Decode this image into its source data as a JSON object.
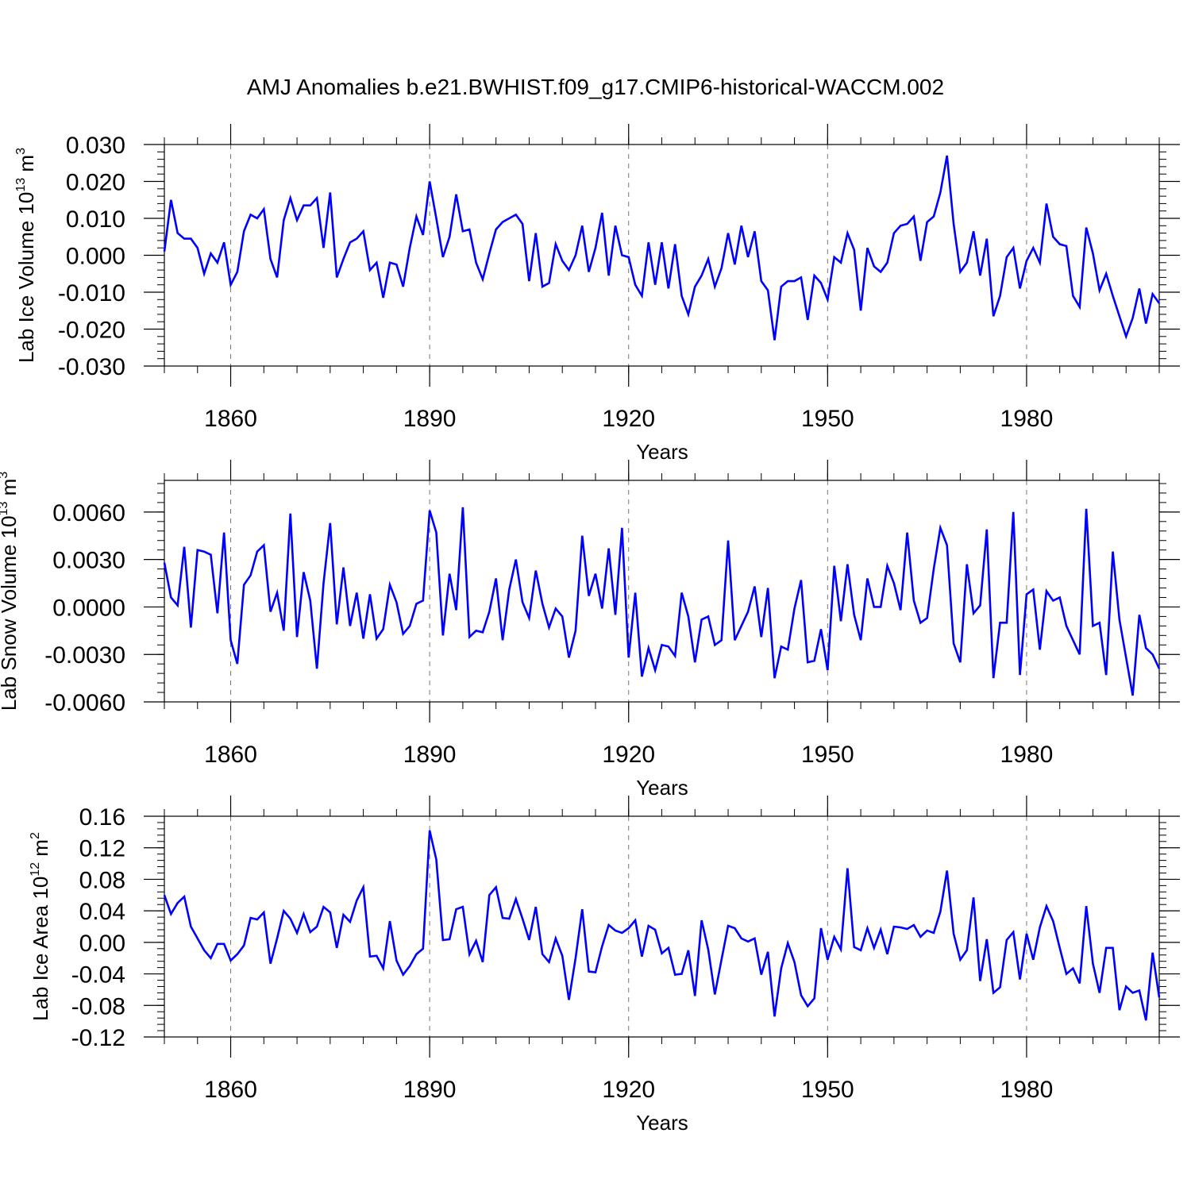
{
  "title": "AMJ Anomalies b.e21.BWHIST.f09_g17.CMIP6-historical-WACCM.002",
  "chart_data": [
    {
      "type": "line",
      "title": "AMJ Anomalies b.e21.BWHIST.f09_g17.CMIP6-historical-WACCM.002",
      "xlabel": "Years",
      "ylabel": "Lab Ice Volume 10",
      "ylabel_sup": "13",
      "ylabel_unit": " m",
      "ylabel_unit_sup": "3",
      "xlim": [
        1850,
        2000
      ],
      "ylim": [
        -0.03,
        0.03
      ],
      "xticks": [
        1860,
        1890,
        1920,
        1950,
        1980
      ],
      "xtick_labels": [
        "1860",
        "1890",
        "1920",
        "1950",
        "1980"
      ],
      "yticks": [
        0.03,
        0.02,
        0.01,
        0.0,
        -0.01,
        -0.02,
        -0.03
      ],
      "ytick_labels": [
        "0.030",
        "0.020",
        "0.010",
        "0.000",
        "-0.010",
        "-0.020",
        "-0.030"
      ],
      "series": [
        {
          "name": "Lab Ice Volume",
          "color": "#0000ff",
          "x_start": 1850,
          "values": [
            0.001,
            0.015,
            0.006,
            0.0045,
            0.0045,
            0.002,
            -0.005,
            0.0005,
            -0.002,
            0.0035,
            -0.008,
            -0.0045,
            0.0065,
            0.011,
            0.01,
            0.0125,
            -0.001,
            -0.006,
            0.0095,
            0.0155,
            0.0095,
            0.0135,
            0.0135,
            0.0155,
            0.002,
            0.017,
            -0.006,
            -0.001,
            0.0035,
            0.0045,
            0.0065,
            -0.004,
            -0.002,
            -0.0115,
            -0.002,
            -0.0025,
            -0.0085,
            0.002,
            0.0105,
            0.0055,
            0.02,
            0.01,
            -0.0005,
            0.005,
            0.0165,
            0.0065,
            0.007,
            -0.002,
            -0.0065,
            0.0005,
            0.007,
            0.009,
            0.01,
            0.011,
            0.0085,
            -0.007,
            0.006,
            -0.0085,
            -0.0075,
            0.003,
            -0.0015,
            -0.004,
            0.0,
            0.008,
            -0.0045,
            0.002,
            0.0115,
            -0.0055,
            0.008,
            0.0,
            -0.0005,
            -0.008,
            -0.011,
            0.0035,
            -0.008,
            0.0035,
            -0.009,
            0.003,
            -0.011,
            -0.016,
            -0.0085,
            -0.0055,
            -0.001,
            -0.0085,
            -0.0035,
            0.006,
            -0.0025,
            0.008,
            -0.0005,
            0.0065,
            -0.007,
            -0.0095,
            -0.023,
            -0.0085,
            -0.007,
            -0.007,
            -0.006,
            -0.0175,
            -0.0055,
            -0.0075,
            -0.012,
            -0.0005,
            -0.002,
            0.006,
            0.0015,
            -0.015,
            0.002,
            -0.003,
            -0.0045,
            -0.002,
            0.006,
            0.008,
            0.0085,
            0.0105,
            -0.0015,
            0.009,
            0.0105,
            0.017,
            0.027,
            0.0085,
            -0.0045,
            -0.002,
            0.0065,
            -0.0055,
            0.0045,
            -0.0165,
            -0.011,
            -0.0005,
            0.002,
            -0.009,
            -0.0015,
            0.002,
            -0.002,
            0.014,
            0.005,
            0.003,
            0.0025,
            -0.011,
            -0.014,
            0.0075,
            0.0005,
            -0.0095,
            -0.005,
            -0.011,
            -0.0165,
            -0.022,
            -0.017,
            -0.009,
            -0.0185,
            -0.0105,
            -0.013
          ]
        }
      ]
    },
    {
      "type": "line",
      "xlabel": "Years",
      "ylabel": "Lab Snow Volume 10",
      "ylabel_sup": "13",
      "ylabel_unit": " m",
      "ylabel_unit_sup": "3",
      "xlim": [
        1850,
        2000
      ],
      "ylim": [
        -0.006,
        0.008
      ],
      "xticks": [
        1860,
        1890,
        1920,
        1950,
        1980
      ],
      "xtick_labels": [
        "1860",
        "1890",
        "1920",
        "1950",
        "1980"
      ],
      "yticks": [
        0.006,
        0.003,
        0.0,
        -0.003,
        -0.006
      ],
      "ytick_labels": [
        "0.0060",
        "0.0030",
        "0.0000",
        "-0.0030",
        "-0.0060"
      ],
      "series": [
        {
          "name": "Lab Snow Volume",
          "color": "#0000ff",
          "x_start": 1850,
          "values": [
            0.0028,
            0.0006,
            0.0001,
            0.0038,
            -0.0013,
            0.0036,
            0.0035,
            0.0033,
            -0.0004,
            0.0047,
            -0.0021,
            -0.0036,
            0.0014,
            0.002,
            0.0035,
            0.0039,
            -0.0003,
            0.0009,
            -0.0015,
            0.0059,
            -0.0019,
            0.0022,
            0.0004,
            -0.0039,
            0.0015,
            0.0053,
            -0.0011,
            0.0025,
            -0.0012,
            0.0009,
            -0.002,
            0.0008,
            -0.002,
            -0.0014,
            0.0014,
            0.0003,
            -0.0017,
            -0.0012,
            0.0002,
            0.0004,
            0.0061,
            0.0047,
            -0.0018,
            0.0021,
            -0.0002,
            0.0063,
            -0.0019,
            -0.0015,
            -0.0016,
            -0.0003,
            0.0018,
            -0.0021,
            0.0011,
            0.003,
            0.0003,
            -0.0007,
            0.0023,
            0.0002,
            -0.0013,
            -0.0001,
            -0.0006,
            -0.0032,
            -0.0015,
            0.0045,
            0.0007,
            0.0021,
            -0.0001,
            0.0037,
            -0.0005,
            0.005,
            -0.0032,
            0.0009,
            -0.0044,
            -0.0026,
            -0.004,
            -0.0024,
            -0.0025,
            -0.0031,
            0.0009,
            -0.0006,
            -0.0035,
            -0.0008,
            -0.0006,
            -0.0024,
            -0.0021,
            0.0042,
            -0.0021,
            -0.0012,
            -0.0003,
            0.0013,
            -0.0019,
            0.0012,
            -0.0045,
            -0.0025,
            -0.0027,
            -0.0001,
            0.0017,
            -0.0035,
            -0.0034,
            -0.0014,
            -0.004,
            0.0026,
            -0.0009,
            0.0027,
            -0.0005,
            -0.0021,
            0.0018,
            0.0,
            0.0,
            0.0026,
            0.0015,
            -0.0002,
            0.0047,
            0.0004,
            -0.001,
            -0.0007,
            0.0024,
            0.005,
            0.0039,
            -0.0023,
            -0.0035,
            0.0027,
            -0.0004,
            0.0001,
            0.0049,
            -0.0045,
            -0.001,
            -0.001,
            0.006,
            -0.0043,
            0.0008,
            0.0011,
            -0.0027,
            0.001,
            0.0004,
            0.0006,
            -0.0012,
            -0.0021,
            -0.003,
            0.0062,
            -0.0012,
            -0.001,
            -0.0043,
            0.0035,
            -0.0008,
            -0.0032,
            -0.0056,
            -0.0005,
            -0.0026,
            -0.003,
            -0.0039
          ]
        }
      ]
    },
    {
      "type": "line",
      "xlabel": "Years",
      "ylabel": "Lab Ice Area 10",
      "ylabel_sup": "12",
      "ylabel_unit": " m",
      "ylabel_unit_sup": "2",
      "xlim": [
        1850,
        2000
      ],
      "ylim": [
        -0.12,
        0.16
      ],
      "xticks": [
        1860,
        1890,
        1920,
        1950,
        1980
      ],
      "xtick_labels": [
        "1860",
        "1890",
        "1920",
        "1950",
        "1980"
      ],
      "yticks": [
        0.16,
        0.12,
        0.08,
        0.04,
        0.0,
        -0.04,
        -0.08,
        -0.12
      ],
      "ytick_labels": [
        "0.16",
        "0.12",
        "0.08",
        "0.04",
        "0.00",
        "-0.04",
        "-0.08",
        "-0.12"
      ],
      "series": [
        {
          "name": "Lab Ice Area",
          "color": "#0000ff",
          "x_start": 1850,
          "values": [
            0.06,
            0.036,
            0.05,
            0.058,
            0.02,
            0.005,
            -0.01,
            -0.02,
            -0.002,
            -0.002,
            -0.023,
            -0.015,
            -0.004,
            0.031,
            0.029,
            0.038,
            -0.027,
            0.005,
            0.04,
            0.03,
            0.012,
            0.036,
            0.013,
            0.02,
            0.045,
            0.038,
            -0.007,
            0.035,
            0.026,
            0.053,
            0.07,
            -0.018,
            -0.017,
            -0.033,
            0.027,
            -0.023,
            -0.041,
            -0.03,
            -0.015,
            -0.008,
            0.142,
            0.105,
            0.003,
            0.004,
            0.042,
            0.045,
            -0.015,
            0.002,
            -0.025,
            0.06,
            0.07,
            0.031,
            0.03,
            0.055,
            0.03,
            0.003,
            0.045,
            -0.015,
            -0.025,
            0.005,
            -0.017,
            -0.073,
            -0.02,
            0.042,
            -0.037,
            -0.038,
            -0.005,
            0.022,
            0.015,
            0.012,
            0.018,
            0.028,
            -0.018,
            0.021,
            0.016,
            -0.014,
            -0.007,
            -0.041,
            -0.04,
            -0.01,
            -0.068,
            0.028,
            -0.009,
            -0.066,
            -0.022,
            0.021,
            0.018,
            0.005,
            0.001,
            0.005,
            -0.041,
            -0.012,
            -0.094,
            -0.033,
            -0.001,
            -0.025,
            -0.067,
            -0.081,
            -0.071,
            0.018,
            -0.022,
            0.007,
            -0.009,
            0.094,
            -0.006,
            -0.01,
            0.018,
            -0.007,
            0.016,
            -0.015,
            0.02,
            0.019,
            0.017,
            0.022,
            0.007,
            0.015,
            0.012,
            0.039,
            0.091,
            0.011,
            -0.022,
            -0.01,
            0.057,
            -0.049,
            0.004,
            -0.064,
            -0.057,
            0.003,
            0.013,
            -0.047,
            0.011,
            -0.022,
            0.019,
            0.046,
            0.027,
            -0.007,
            -0.04,
            -0.033,
            -0.052,
            0.046,
            -0.027,
            -0.064,
            -0.007,
            -0.007,
            -0.086,
            -0.056,
            -0.064,
            -0.061,
            -0.099,
            -0.013,
            -0.07
          ]
        }
      ]
    }
  ]
}
